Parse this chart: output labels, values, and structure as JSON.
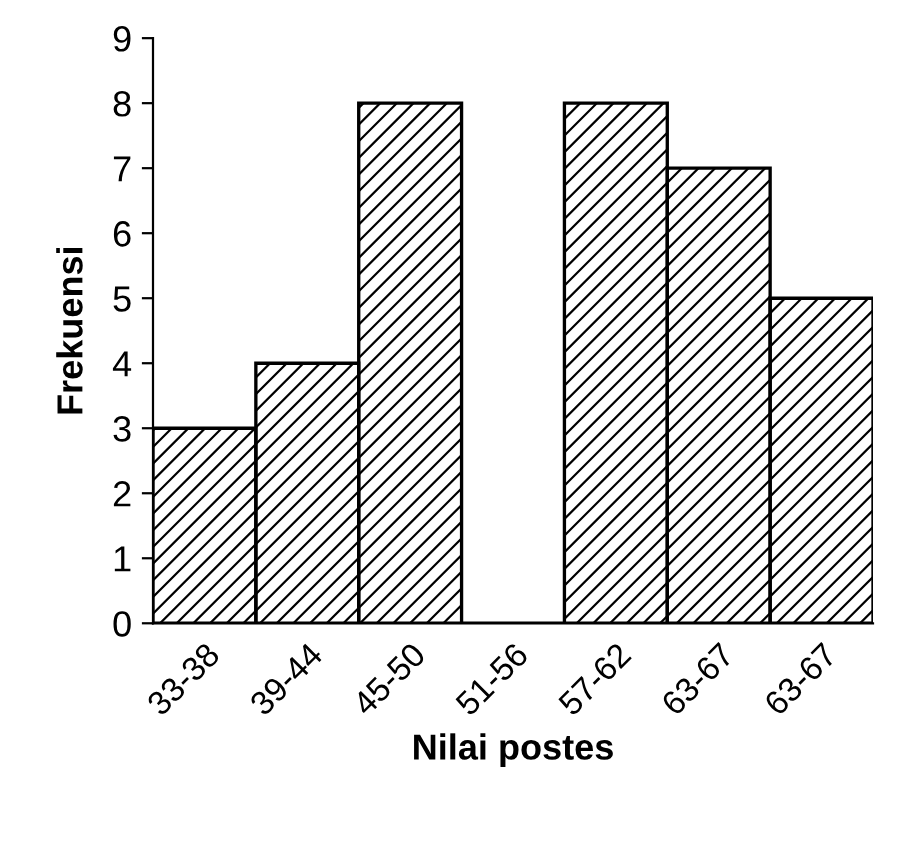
{
  "chart_data": {
    "type": "bar",
    "xlabel": "Nilai postes",
    "ylabel": "Frekuensi",
    "categories": [
      "33-38",
      "39-44",
      "45-50",
      "51-56",
      "57-62",
      "63-67",
      "63-67"
    ],
    "values": [
      3,
      4,
      8,
      0,
      8,
      7,
      5
    ],
    "color": "#000000",
    "ylim": [
      0,
      9
    ],
    "yticks": [
      0,
      1,
      2,
      3,
      4,
      5,
      6,
      7,
      8,
      9
    ],
    "grid": false,
    "legend": false
  }
}
